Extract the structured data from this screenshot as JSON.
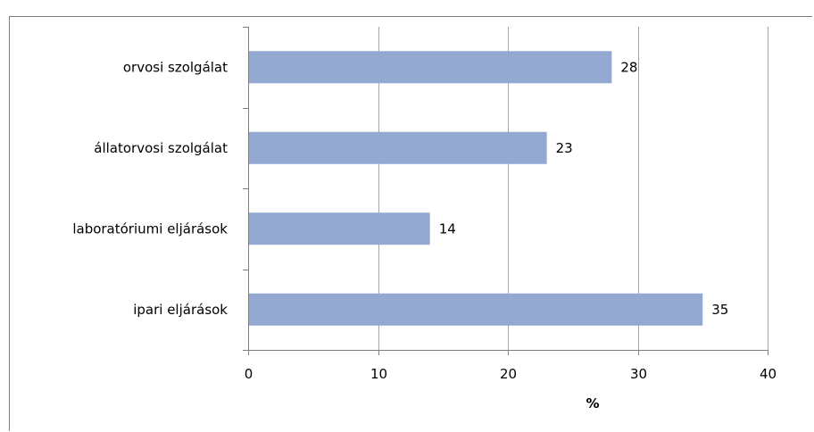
{
  "chart_data": {
    "type": "bar",
    "orientation": "horizontal",
    "categories": [
      "orvosi szolgálat",
      "állatorvosi szolgálat",
      "laboratóriumi eljárások",
      "ipari eljárások"
    ],
    "values": [
      28,
      23,
      14,
      35
    ],
    "data_labels": [
      "28",
      "23",
      "14",
      "35"
    ],
    "xlabel": "%",
    "xlim": [
      0,
      40
    ],
    "xticks": [
      "0",
      "10",
      "20",
      "30",
      "40"
    ],
    "grid": true,
    "legend": "none"
  },
  "colors": {
    "bar": "#94a9d1",
    "grid": "#a6a6a6",
    "axis": "#7f7f7f",
    "text": "#000000"
  }
}
